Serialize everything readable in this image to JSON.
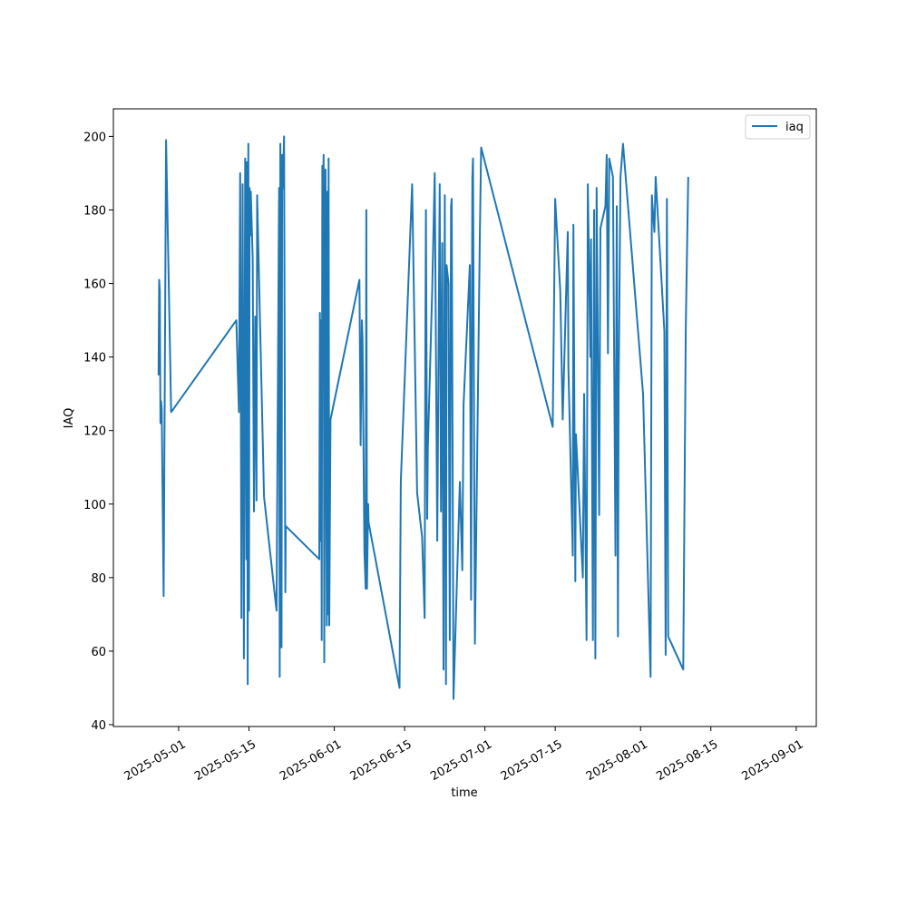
{
  "chart_data": {
    "type": "line",
    "title": "",
    "xlabel": "time",
    "ylabel": "IAQ",
    "x_axis_type": "date",
    "xlim": [
      "2025-04-18",
      "2025-09-05"
    ],
    "ylim": [
      39.5,
      207.5
    ],
    "yticks": [
      40,
      60,
      80,
      100,
      120,
      140,
      160,
      180,
      200
    ],
    "xticks": [
      "2025-05-01",
      "2025-05-15",
      "2025-06-01",
      "2025-06-15",
      "2025-07-01",
      "2025-07-15",
      "2025-08-01",
      "2025-08-15",
      "2025-09-01"
    ],
    "grid": false,
    "legend_position": "top-right",
    "color": "#1f77b4",
    "series": [
      {
        "name": "iaq",
        "points": [
          [
            "2025-04-27T00:00",
            135
          ],
          [
            "2025-04-27T03:00",
            161
          ],
          [
            "2025-04-27T06:00",
            158
          ],
          [
            "2025-04-27T09:00",
            122
          ],
          [
            "2025-04-27T12:00",
            128
          ],
          [
            "2025-04-27T15:00",
            126
          ],
          [
            "2025-04-28T00:00",
            75
          ],
          [
            "2025-04-28T12:00",
            199
          ],
          [
            "2025-04-29T12:00",
            125
          ],
          [
            "2025-05-12T12:00",
            150
          ],
          [
            "2025-05-13T00:00",
            125
          ],
          [
            "2025-05-13T06:00",
            190
          ],
          [
            "2025-05-13T12:00",
            69
          ],
          [
            "2025-05-13T18:00",
            187
          ],
          [
            "2025-05-14T00:00",
            58
          ],
          [
            "2025-05-14T06:00",
            194
          ],
          [
            "2025-05-14T12:00",
            85
          ],
          [
            "2025-05-14T14:00",
            193
          ],
          [
            "2025-05-14T18:00",
            51
          ],
          [
            "2025-05-14T21:00",
            198
          ],
          [
            "2025-05-15T00:00",
            71
          ],
          [
            "2025-05-15T03:00",
            186
          ],
          [
            "2025-05-15T06:00",
            173
          ],
          [
            "2025-05-15T09:00",
            185
          ],
          [
            "2025-05-15T18:00",
            167
          ],
          [
            "2025-05-16T00:00",
            98
          ],
          [
            "2025-05-16T06:00",
            151
          ],
          [
            "2025-05-16T12:00",
            101
          ],
          [
            "2025-05-16T15:00",
            184
          ],
          [
            "2025-05-18T00:00",
            102
          ],
          [
            "2025-05-20T12:00",
            71
          ],
          [
            "2025-05-21T00:00",
            186
          ],
          [
            "2025-05-21T03:00",
            53
          ],
          [
            "2025-05-21T06:00",
            198
          ],
          [
            "2025-05-21T12:00",
            61
          ],
          [
            "2025-05-21T15:00",
            195
          ],
          [
            "2025-05-21T18:00",
            186
          ],
          [
            "2025-05-22T00:00",
            200
          ],
          [
            "2025-05-22T06:00",
            76
          ],
          [
            "2025-05-22T08:00",
            94
          ],
          [
            "2025-05-29T00:00",
            85
          ],
          [
            "2025-05-29T03:00",
            152
          ],
          [
            "2025-05-29T06:00",
            90
          ],
          [
            "2025-05-29T09:00",
            150
          ],
          [
            "2025-05-29T12:00",
            63
          ],
          [
            "2025-05-29T15:00",
            192
          ],
          [
            "2025-05-29T18:00",
            183
          ],
          [
            "2025-05-29T21:00",
            195
          ],
          [
            "2025-05-30T00:00",
            57
          ],
          [
            "2025-05-30T06:00",
            191
          ],
          [
            "2025-05-30T12:00",
            67
          ],
          [
            "2025-05-30T15:00",
            185
          ],
          [
            "2025-05-30T18:00",
            70
          ],
          [
            "2025-05-30T21:00",
            194
          ],
          [
            "2025-05-31T00:00",
            67
          ],
          [
            "2025-05-31T06:00",
            123
          ],
          [
            "2025-06-06T00:00",
            161
          ],
          [
            "2025-06-06T06:00",
            116
          ],
          [
            "2025-06-06T12:00",
            150
          ],
          [
            "2025-06-06T15:00",
            145
          ],
          [
            "2025-06-07T00:00",
            87
          ],
          [
            "2025-06-07T06:00",
            77
          ],
          [
            "2025-06-07T09:00",
            180
          ],
          [
            "2025-06-07T12:00",
            77
          ],
          [
            "2025-06-07T18:00",
            100
          ],
          [
            "2025-06-07T20:00",
            95
          ],
          [
            "2025-06-14T00:00",
            50
          ],
          [
            "2025-06-14T06:00",
            106
          ],
          [
            "2025-06-16T12:00",
            187
          ],
          [
            "2025-06-17T12:00",
            103
          ],
          [
            "2025-06-18T12:00",
            91
          ],
          [
            "2025-06-19T00:00",
            69
          ],
          [
            "2025-06-19T03:00",
            138
          ],
          [
            "2025-06-19T06:00",
            180
          ],
          [
            "2025-06-19T12:00",
            96
          ],
          [
            "2025-06-19T15:00",
            115
          ],
          [
            "2025-06-20T12:00",
            158
          ],
          [
            "2025-06-21T00:00",
            190
          ],
          [
            "2025-06-21T12:00",
            90
          ],
          [
            "2025-06-22T00:00",
            187
          ],
          [
            "2025-06-22T06:00",
            98
          ],
          [
            "2025-06-22T12:00",
            171
          ],
          [
            "2025-06-22T18:00",
            55
          ],
          [
            "2025-06-23T00:00",
            184
          ],
          [
            "2025-06-23T06:00",
            51
          ],
          [
            "2025-06-23T09:00",
            165
          ],
          [
            "2025-06-23T18:00",
            160
          ],
          [
            "2025-06-24T00:00",
            63
          ],
          [
            "2025-06-24T06:00",
            181
          ],
          [
            "2025-06-24T09:00",
            183
          ],
          [
            "2025-06-24T18:00",
            47
          ],
          [
            "2025-06-26T00:00",
            106
          ],
          [
            "2025-06-26T12:00",
            82
          ],
          [
            "2025-06-26T18:00",
            127
          ],
          [
            "2025-06-28T00:00",
            165
          ],
          [
            "2025-06-28T06:00",
            74
          ],
          [
            "2025-06-28T12:00",
            189
          ],
          [
            "2025-06-28T15:00",
            194
          ],
          [
            "2025-06-29T00:00",
            62
          ],
          [
            "2025-06-30T00:00",
            174
          ],
          [
            "2025-06-30T06:00",
            197
          ],
          [
            "2025-07-14T12:00",
            121
          ],
          [
            "2025-07-15T00:00",
            183
          ],
          [
            "2025-07-16T00:00",
            158
          ],
          [
            "2025-07-16T12:00",
            123
          ],
          [
            "2025-07-17T12:00",
            174
          ],
          [
            "2025-07-17T15:00",
            137
          ],
          [
            "2025-07-18T12:00",
            86
          ],
          [
            "2025-07-18T15:00",
            176
          ],
          [
            "2025-07-19T00:00",
            79
          ],
          [
            "2025-07-19T03:00",
            119
          ],
          [
            "2025-07-20T12:00",
            80
          ],
          [
            "2025-07-20T18:00",
            130
          ],
          [
            "2025-07-21T06:00",
            63
          ],
          [
            "2025-07-21T12:00",
            187
          ],
          [
            "2025-07-22T00:00",
            140
          ],
          [
            "2025-07-22T03:00",
            172
          ],
          [
            "2025-07-22T12:00",
            63
          ],
          [
            "2025-07-22T18:00",
            180
          ],
          [
            "2025-07-23T00:00",
            58
          ],
          [
            "2025-07-23T06:00",
            186
          ],
          [
            "2025-07-23T18:00",
            97
          ],
          [
            "2025-07-24T00:00",
            175
          ],
          [
            "2025-07-24T12:00",
            178
          ],
          [
            "2025-07-25T00:00",
            181
          ],
          [
            "2025-07-25T06:00",
            195
          ],
          [
            "2025-07-25T12:00",
            141
          ],
          [
            "2025-07-25T18:00",
            194
          ],
          [
            "2025-07-26T12:00",
            189
          ],
          [
            "2025-07-27T00:00",
            86
          ],
          [
            "2025-07-27T06:00",
            181
          ],
          [
            "2025-07-27T12:00",
            64
          ],
          [
            "2025-07-27T15:00",
            130
          ],
          [
            "2025-07-28T00:00",
            189
          ],
          [
            "2025-07-28T12:00",
            198
          ],
          [
            "2025-08-01T12:00",
            130
          ],
          [
            "2025-08-03T00:00",
            53
          ],
          [
            "2025-08-03T06:00",
            184
          ],
          [
            "2025-08-03T18:00",
            174
          ],
          [
            "2025-08-04T00:00",
            189
          ],
          [
            "2025-08-05T18:00",
            147
          ],
          [
            "2025-08-06T00:00",
            59
          ],
          [
            "2025-08-06T06:00",
            183
          ],
          [
            "2025-08-06T12:00",
            64
          ],
          [
            "2025-08-09T12:00",
            55
          ],
          [
            "2025-08-10T00:00",
            148
          ],
          [
            "2025-08-10T12:00",
            189
          ]
        ]
      }
    ]
  }
}
